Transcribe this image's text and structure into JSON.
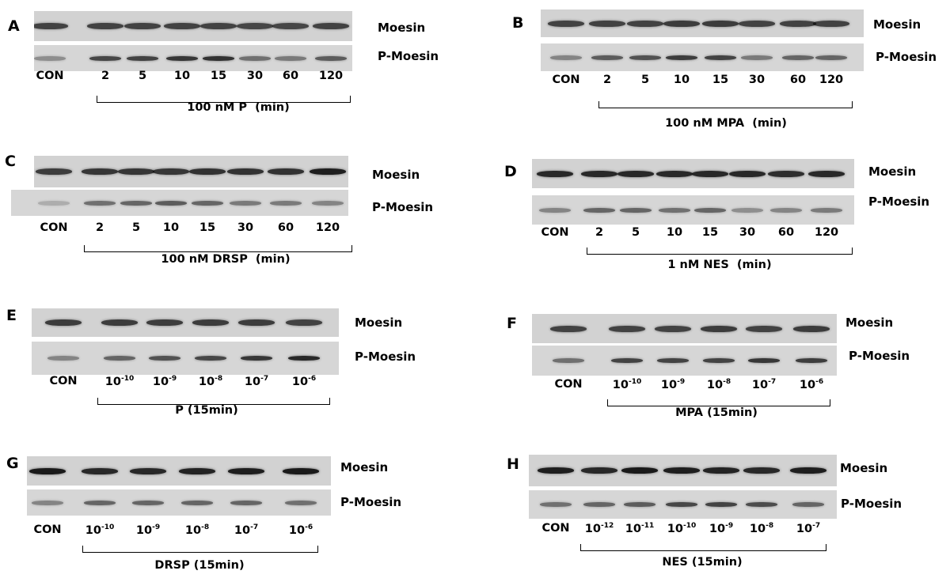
{
  "panels": [
    {
      "id": "A",
      "caption": "100 nM P  (min)",
      "moesin_label": "Moesin",
      "pmoesin_label": "P-Moesin",
      "lanes": [
        {
          "t": "CON"
        },
        {
          "t": "2"
        },
        {
          "t": "5"
        },
        {
          "t": "10"
        },
        {
          "t": "15"
        },
        {
          "t": "30"
        },
        {
          "t": "60"
        },
        {
          "t": "120"
        }
      ]
    },
    {
      "id": "B",
      "caption": "100 nM MPA  (min)",
      "moesin_label": "Moesin",
      "pmoesin_label": "P-Moesin",
      "lanes": [
        {
          "t": "CON"
        },
        {
          "t": "2"
        },
        {
          "t": "5"
        },
        {
          "t": "10"
        },
        {
          "t": "15"
        },
        {
          "t": "30"
        },
        {
          "t": "60"
        },
        {
          "t": "120"
        }
      ]
    },
    {
      "id": "C",
      "caption": "100 nM DRSP  (min)",
      "moesin_label": "Moesin",
      "pmoesin_label": "P-Moesin",
      "lanes": [
        {
          "t": "CON"
        },
        {
          "t": "2"
        },
        {
          "t": "5"
        },
        {
          "t": "10"
        },
        {
          "t": "15"
        },
        {
          "t": "30"
        },
        {
          "t": "60"
        },
        {
          "t": "120"
        }
      ]
    },
    {
      "id": "D",
      "caption": "1 nM NES  (min)",
      "moesin_label": "Moesin",
      "pmoesin_label": "P-Moesin",
      "lanes": [
        {
          "t": "CON"
        },
        {
          "t": "2"
        },
        {
          "t": "5"
        },
        {
          "t": "10"
        },
        {
          "t": "15"
        },
        {
          "t": "30"
        },
        {
          "t": "60"
        },
        {
          "t": "120"
        }
      ]
    },
    {
      "id": "E",
      "caption": "P (15min)",
      "moesin_label": "Moesin",
      "pmoesin_label": "P-Moesin",
      "lanes": [
        {
          "t": "CON"
        },
        {
          "b": "10",
          "e": "-10"
        },
        {
          "b": "10",
          "e": "-9"
        },
        {
          "b": "10",
          "e": "-8"
        },
        {
          "b": "10",
          "e": "-7"
        },
        {
          "b": "10",
          "e": "-6"
        }
      ]
    },
    {
      "id": "F",
      "caption": "MPA (15min)",
      "moesin_label": "Moesin",
      "pmoesin_label": "P-Moesin",
      "lanes": [
        {
          "t": "CON"
        },
        {
          "b": "10",
          "e": "-10"
        },
        {
          "b": "10",
          "e": "-9"
        },
        {
          "b": "10",
          "e": "-8"
        },
        {
          "b": "10",
          "e": "-7"
        },
        {
          "b": "10",
          "e": "-6"
        }
      ]
    },
    {
      "id": "G",
      "caption": "DRSP (15min)",
      "moesin_label": "Moesin",
      "pmoesin_label": "P-Moesin",
      "lanes": [
        {
          "t": "CON"
        },
        {
          "b": "10",
          "e": "-10"
        },
        {
          "b": "10",
          "e": "-9"
        },
        {
          "b": "10",
          "e": "-8"
        },
        {
          "b": "10",
          "e": "-7"
        },
        {
          "b": "10",
          "e": "-6"
        }
      ]
    },
    {
      "id": "H",
      "caption": "NES (15min)",
      "moesin_label": "Moesin",
      "pmoesin_label": "P-Moesin",
      "lanes": [
        {
          "t": "CON"
        },
        {
          "b": "10",
          "e": "-12"
        },
        {
          "b": "10",
          "e": "-11"
        },
        {
          "b": "10",
          "e": "-10"
        },
        {
          "b": "10",
          "e": "-9"
        },
        {
          "b": "10",
          "e": "-8"
        },
        {
          "b": "10",
          "e": "-7"
        }
      ]
    }
  ]
}
